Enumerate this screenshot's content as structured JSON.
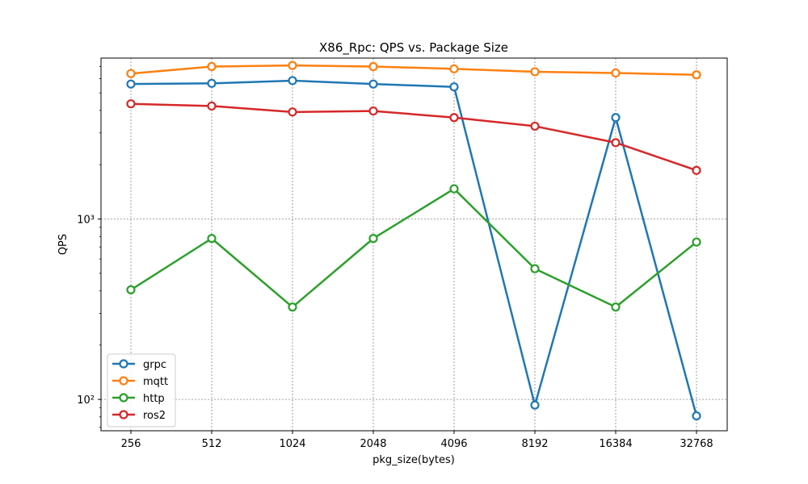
{
  "chart_data": {
    "type": "line",
    "title": "X86_Rpc:  QPS vs. Package Size",
    "xlabel": "pkg_size(bytes)",
    "ylabel": "QPS",
    "categories": [
      "256",
      "512",
      "1024",
      "2048",
      "4096",
      "8192",
      "16384",
      "32768"
    ],
    "y_scale": "log",
    "ylim": [
      67,
      7800
    ],
    "y_ticks": [
      {
        "value": 100,
        "label": "10²"
      },
      {
        "value": 1000,
        "label": "10³"
      }
    ],
    "grid": true,
    "legend_position": "lower-left",
    "series": [
      {
        "name": "grpc",
        "color": "#1f77b4",
        "values": [
          5600,
          5650,
          5850,
          5600,
          5400,
          93,
          3650,
          81
        ]
      },
      {
        "name": "mqtt",
        "color": "#ff7f0e",
        "values": [
          6400,
          7000,
          7100,
          7000,
          6800,
          6550,
          6450,
          6300
        ]
      },
      {
        "name": "http",
        "color": "#2ca02c",
        "values": [
          405,
          780,
          325,
          780,
          1470,
          530,
          325,
          745
        ]
      },
      {
        "name": "ros2",
        "color": "#d62728",
        "values": [
          4350,
          4230,
          3920,
          3970,
          3650,
          3270,
          2650,
          1860
        ]
      }
    ]
  }
}
